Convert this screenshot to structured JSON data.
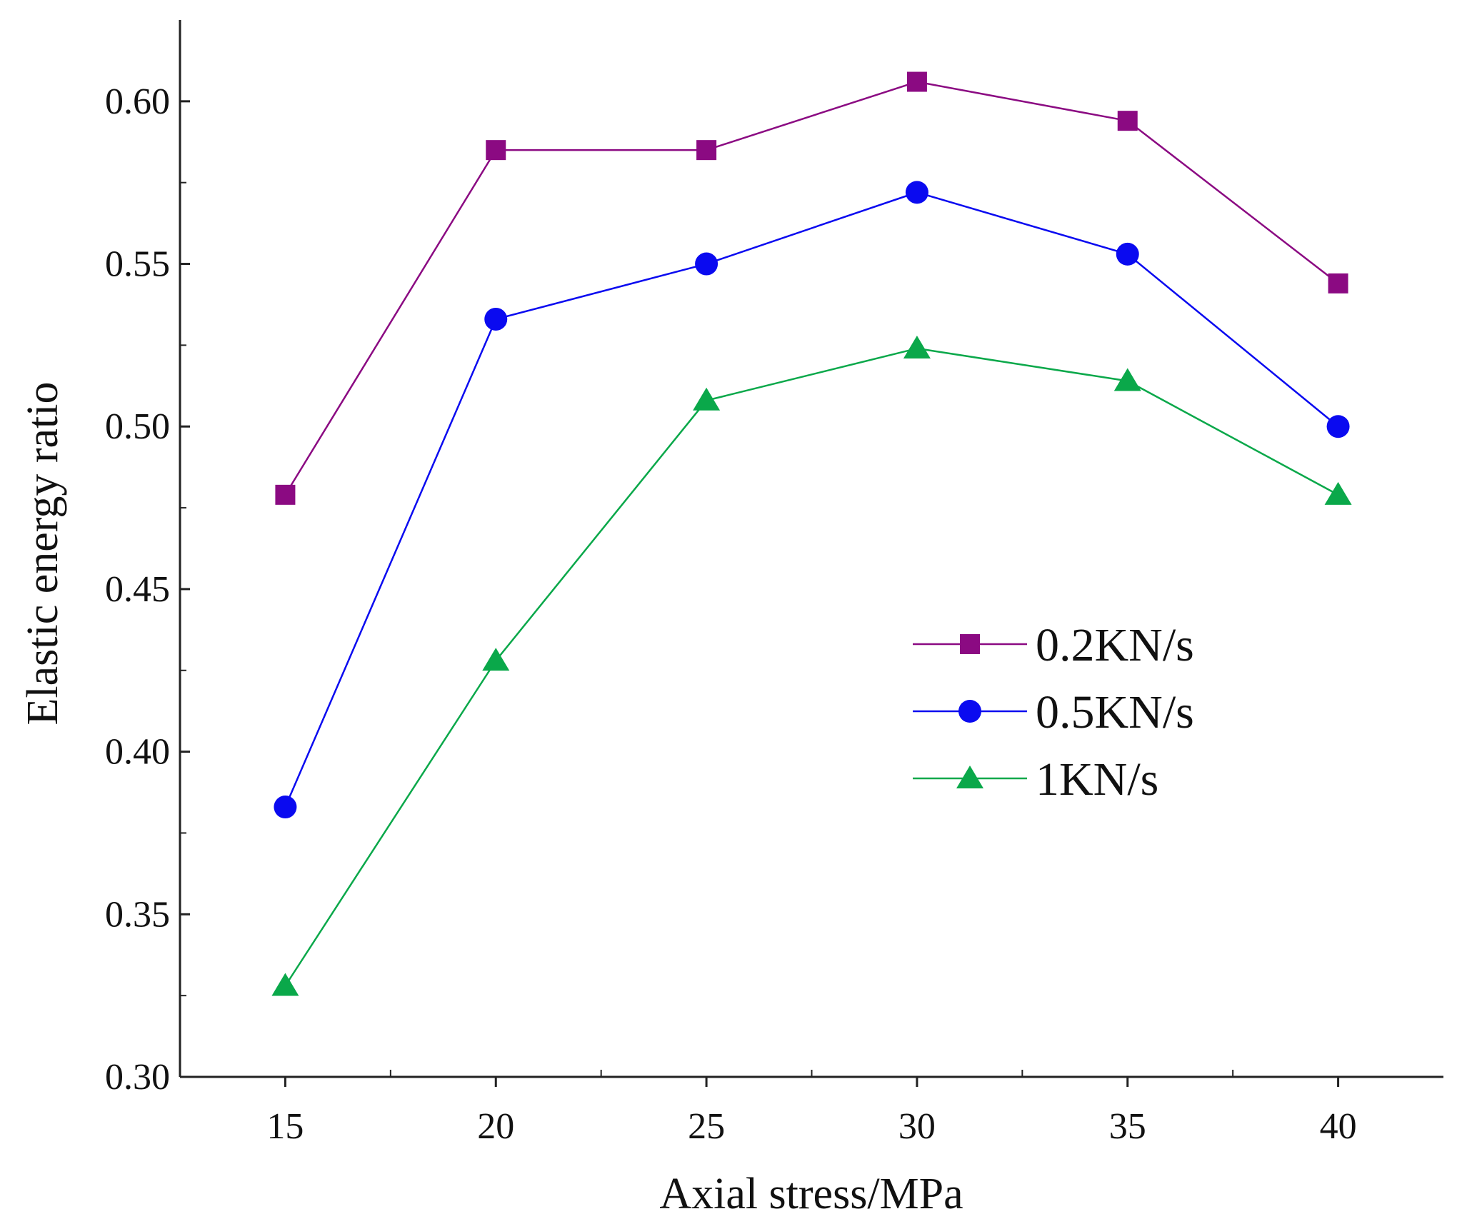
{
  "chart_data": {
    "type": "line",
    "title": "",
    "xlabel": "Axial stress/MPa",
    "ylabel": "Elastic energy ratio",
    "x": [
      15,
      20,
      25,
      30,
      35,
      40
    ],
    "xlim": [
      12.5,
      42.5
    ],
    "ylim": [
      0.3,
      0.625
    ],
    "xticks": [
      "15",
      "20",
      "25",
      "30",
      "35",
      "40"
    ],
    "yticks": [
      "0.30",
      "0.35",
      "0.40",
      "0.45",
      "0.50",
      "0.55",
      "0.60"
    ],
    "grid": false,
    "legend_position": "center-right",
    "series": [
      {
        "name": "0.2KN/s",
        "marker": "square",
        "color": "#8b0a82",
        "values": [
          0.479,
          0.585,
          0.585,
          0.606,
          0.594,
          0.544
        ]
      },
      {
        "name": "0.5KN/s",
        "marker": "circle",
        "color": "#0a0af0",
        "values": [
          0.383,
          0.533,
          0.55,
          0.572,
          0.553,
          0.5
        ]
      },
      {
        "name": "1KN/s",
        "marker": "triangle",
        "color": "#0aa84a",
        "values": [
          0.328,
          0.428,
          0.508,
          0.524,
          0.514,
          0.479
        ]
      }
    ]
  }
}
